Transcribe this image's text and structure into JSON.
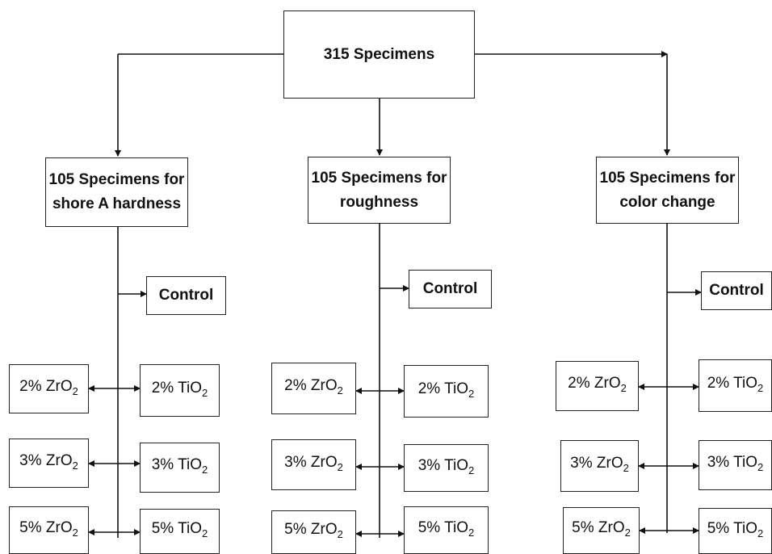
{
  "root": {
    "label": "315 Specimens"
  },
  "branches": [
    {
      "title": [
        "105 Specimens for",
        "shore A hardness"
      ],
      "control": "Control",
      "groups": [
        {
          "zr": {
            "pre": "2% ZrO",
            "sub": "2"
          },
          "ti": {
            "pre": "2% TiO",
            "sub": "2"
          }
        },
        {
          "zr": {
            "pre": "3% ZrO",
            "sub": "2"
          },
          "ti": {
            "pre": "3% TiO",
            "sub": "2"
          }
        },
        {
          "zr": {
            "pre": "5% ZrO",
            "sub": "2"
          },
          "ti": {
            "pre": "5% TiO",
            "sub": "2"
          }
        }
      ]
    },
    {
      "title": [
        "105 Specimens for",
        "roughness"
      ],
      "control": "Control",
      "groups": [
        {
          "zr": {
            "pre": "2% ZrO",
            "sub": "2"
          },
          "ti": {
            "pre": "2% TiO",
            "sub": "2"
          }
        },
        {
          "zr": {
            "pre": "3% ZrO",
            "sub": "2"
          },
          "ti": {
            "pre": "3% TiO",
            "sub": "2"
          }
        },
        {
          "zr": {
            "pre": "5% ZrO",
            "sub": "2"
          },
          "ti": {
            "pre": "5% TiO",
            "sub": "2"
          }
        }
      ]
    },
    {
      "title": [
        "105 Specimens for",
        "color change"
      ],
      "control": "Control",
      "groups": [
        {
          "zr": {
            "pre": "2% ZrO",
            "sub": "2"
          },
          "ti": {
            "pre": "2% TiO",
            "sub": "2"
          }
        },
        {
          "zr": {
            "pre": "3% ZrO",
            "sub": "2"
          },
          "ti": {
            "pre": "3% TiO",
            "sub": "2"
          }
        },
        {
          "zr": {
            "pre": "5% ZrO",
            "sub": "2"
          },
          "ti": {
            "pre": "5% TiO",
            "sub": "2"
          }
        }
      ]
    }
  ]
}
